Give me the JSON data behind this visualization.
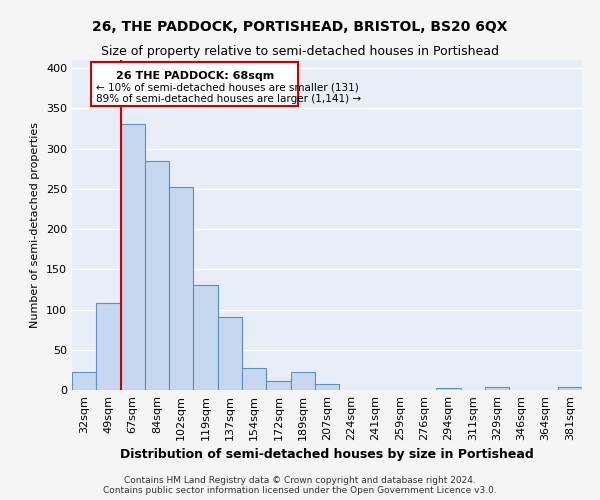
{
  "title": "26, THE PADDOCK, PORTISHEAD, BRISTOL, BS20 6QX",
  "subtitle": "Size of property relative to semi-detached houses in Portishead",
  "xlabel": "Distribution of semi-detached houses by size in Portishead",
  "ylabel": "Number of semi-detached properties",
  "footer_line1": "Contains HM Land Registry data © Crown copyright and database right 2024.",
  "footer_line2": "Contains public sector information licensed under the Open Government Licence v3.0.",
  "bin_labels": [
    "32sqm",
    "49sqm",
    "67sqm",
    "84sqm",
    "102sqm",
    "119sqm",
    "137sqm",
    "154sqm",
    "172sqm",
    "189sqm",
    "207sqm",
    "224sqm",
    "241sqm",
    "259sqm",
    "276sqm",
    "294sqm",
    "311sqm",
    "329sqm",
    "346sqm",
    "364sqm",
    "381sqm"
  ],
  "bar_values": [
    22,
    108,
    330,
    285,
    252,
    130,
    91,
    27,
    11,
    22,
    7,
    0,
    0,
    0,
    0,
    3,
    0,
    4,
    0,
    0,
    4
  ],
  "bar_color": "#c5d8f0",
  "bar_edge_color": "#5b8fc9",
  "bar_edge_width": 0.8,
  "bg_color": "#e8eef8",
  "grid_color": "#ffffff",
  "property_label": "26 THE PADDOCK: 68sqm",
  "annotation_line1": "← 10% of semi-detached houses are smaller (131)",
  "annotation_line2": "89% of semi-detached houses are larger (1,141) →",
  "vline_color": "#cc0000",
  "vline_x_index": 1.5,
  "annotation_box_color": "#cc0000",
  "ylim": [
    0,
    410
  ],
  "yticks": [
    0,
    50,
    100,
    150,
    200,
    250,
    300,
    350,
    400
  ],
  "fig_bg_color": "#f5f5f5",
  "title_fontsize": 10,
  "subtitle_fontsize": 9,
  "xlabel_fontsize": 9,
  "ylabel_fontsize": 8,
  "tick_fontsize": 8,
  "annot_fontsize": 8
}
